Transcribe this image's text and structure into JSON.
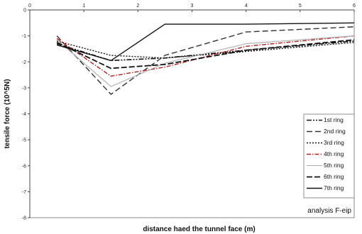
{
  "chart_data": {
    "type": "line",
    "xlabel": "distance haed the tunnel face (m)",
    "ylabel": "tensile force (10^5N)",
    "annotation": "analysis F-eip",
    "xlim": [
      0,
      6
    ],
    "ylim": [
      -8,
      0
    ],
    "x_ticks": [
      "0",
      "1",
      "2",
      "3",
      "4",
      "5",
      "6"
    ],
    "y_ticks": [
      "0",
      "-1",
      "-2",
      "-3",
      "-4",
      "-5",
      "-6",
      "-7",
      "-8"
    ],
    "grid": false,
    "legend_position": "right",
    "series": [
      {
        "name": "1st ring",
        "color": "#111111",
        "dash": "7,2,2,2,2,2",
        "width": 1.6,
        "points": [
          [
            0.5,
            -1.3
          ],
          [
            1.5,
            -1.95
          ],
          [
            2.5,
            -1.85
          ],
          [
            4,
            -1.55
          ],
          [
            6,
            -1.2
          ]
        ]
      },
      {
        "name": "2nd ring",
        "color": "#333333",
        "dash": "8,4",
        "width": 1.4,
        "points": [
          [
            0.5,
            -1.0
          ],
          [
            1.5,
            -3.25
          ],
          [
            2.5,
            -1.75
          ],
          [
            4,
            -0.85
          ],
          [
            6,
            -0.65
          ]
        ]
      },
      {
        "name": "3rd ring",
        "color": "#111111",
        "dash": "2,2",
        "width": 1.4,
        "points": [
          [
            0.5,
            -1.2
          ],
          [
            1.5,
            -1.75
          ],
          [
            2.5,
            -1.85
          ],
          [
            4,
            -1.6
          ],
          [
            6,
            -1.25
          ]
        ]
      },
      {
        "name": "4th ring",
        "color": "#b22222",
        "dash": "6,2,1.5,2",
        "width": 1.4,
        "points": [
          [
            0.5,
            -1.1
          ],
          [
            1.5,
            -2.55
          ],
          [
            2.5,
            -2.2
          ],
          [
            4,
            -1.4
          ],
          [
            6,
            -1.0
          ]
        ]
      },
      {
        "name": "5th ring",
        "color": "#aaaaaa",
        "dash": "",
        "width": 1.1,
        "points": [
          [
            0.5,
            -1.15
          ],
          [
            1.5,
            -2.95
          ],
          [
            2.5,
            -2.05
          ],
          [
            4,
            -1.3
          ],
          [
            6,
            -1.0
          ]
        ]
      },
      {
        "name": "6th ring",
        "color": "#111111",
        "dash": "8,3",
        "width": 1.8,
        "points": [
          [
            0.5,
            -1.25
          ],
          [
            1.5,
            -2.25
          ],
          [
            2.5,
            -2.1
          ],
          [
            4,
            -1.55
          ],
          [
            6,
            -1.15
          ]
        ]
      },
      {
        "name": "7th ring",
        "color": "#111111",
        "dash": "",
        "width": 1.4,
        "points": [
          [
            0.5,
            -1.35
          ],
          [
            1.5,
            -1.95
          ],
          [
            2.5,
            -0.55
          ],
          [
            4,
            -0.55
          ],
          [
            6,
            -0.5
          ]
        ]
      }
    ]
  }
}
